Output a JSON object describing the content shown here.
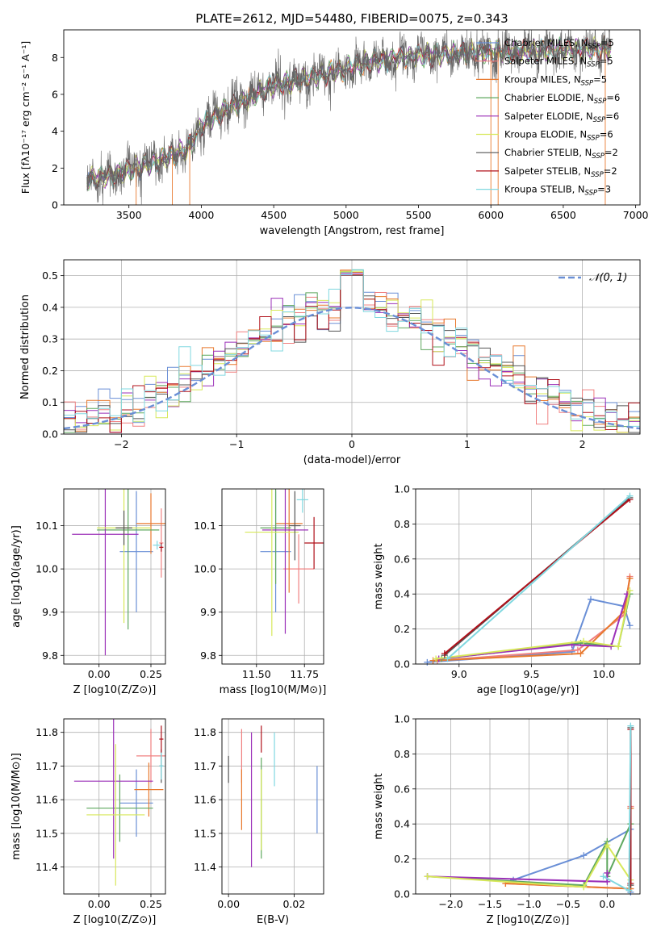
{
  "title": "PLATE=2612, MJD=54480, FIBERID=0075, z=0.343",
  "legend": [
    {
      "name": "Chabrier MILES, N_SSP=5",
      "base": "Chabrier MILES, N",
      "sub": "SSP",
      "tail": "=5",
      "color": "#6a8fd6"
    },
    {
      "name": "Salpeter MILES, N_SSP=5",
      "base": "Salpeter MILES, N",
      "sub": "SSP",
      "tail": "=5",
      "color": "#f08080"
    },
    {
      "name": "Kroupa MILES, N_SSP=5",
      "base": "Kroupa MILES, N",
      "sub": "SSP",
      "tail": "=5",
      "color": "#e8792e"
    },
    {
      "name": "Chabrier ELODIE, N_SSP=6",
      "base": "Chabrier ELODIE, N",
      "sub": "SSP",
      "tail": "=6",
      "color": "#5fa85f"
    },
    {
      "name": "Salpeter ELODIE, N_SSP=6",
      "base": "Salpeter ELODIE, N",
      "sub": "SSP",
      "tail": "=6",
      "color": "#9b30b8"
    },
    {
      "name": "Kroupa ELODIE, N_SSP=6",
      "base": "Kroupa ELODIE, N",
      "sub": "SSP",
      "tail": "=6",
      "color": "#d7e85a"
    },
    {
      "name": "Chabrier STELIB, N_SSP=2",
      "base": "Chabrier STELIB, N",
      "sub": "SSP",
      "tail": "=2",
      "color": "#555555"
    },
    {
      "name": "Salpeter STELIB, N_SSP=2",
      "base": "Salpeter STELIB, N",
      "sub": "SSP",
      "tail": "=2",
      "color": "#b0101a"
    },
    {
      "name": "Kroupa STELIB, N_SSP=3",
      "base": "Kroupa STELIB, N",
      "sub": "SSP",
      "tail": "=3",
      "color": "#80d8e0"
    }
  ],
  "chart_data": [
    {
      "id": "spectrum",
      "type": "line",
      "xlabel": "wavelength [Angstrom, rest frame]",
      "ylabel": "Flux [f_λ 10^-17 erg cm^-2 s^-1 A^-1]",
      "xlim": [
        3050,
        7030
      ],
      "ylim": [
        0,
        9.5
      ],
      "xticks": [
        3500,
        4000,
        4500,
        5000,
        5500,
        6000,
        6500,
        7000
      ],
      "yticks": [
        0,
        2,
        4,
        6,
        8
      ],
      "data_range": [
        3210,
        6830
      ],
      "continuum": [
        [
          3210,
          1.4
        ],
        [
          3400,
          1.6
        ],
        [
          3500,
          1.9
        ],
        [
          3700,
          2.4
        ],
        [
          3900,
          3.0
        ],
        [
          4000,
          4.3
        ],
        [
          4200,
          5.3
        ],
        [
          4500,
          6.5
        ],
        [
          4800,
          7.0
        ],
        [
          5000,
          7.4
        ],
        [
          5200,
          7.8
        ],
        [
          5500,
          8.1
        ],
        [
          6000,
          8.3
        ],
        [
          6500,
          8.4
        ],
        [
          6830,
          8.5
        ]
      ]
    },
    {
      "id": "residuals",
      "type": "histogram",
      "xlabel": "(data-model)/error",
      "ylabel": "Normed distribution",
      "xlim": [
        -2.5,
        2.5
      ],
      "ylim": [
        0,
        0.55
      ],
      "xticks": [
        -2,
        -1,
        0,
        1,
        2
      ],
      "yticks": [
        0.0,
        0.1,
        0.2,
        0.3,
        0.4,
        0.5
      ],
      "bin_width": 0.1,
      "gaussian_label": "N(0,1)"
    },
    {
      "id": "age_vs_Z",
      "type": "errorbar",
      "xlabel": "Z [log10(Z/Z⊙)]",
      "ylabel": "age [log10(age/yr)]",
      "xlim": [
        -0.17,
        0.32
      ],
      "ylim": [
        9.78,
        10.185
      ],
      "xticks": [
        0.0,
        0.25
      ],
      "xtick_labels": [
        "0.00",
        "0.25"
      ],
      "yticks": [
        9.8,
        9.9,
        10.0,
        10.1
      ],
      "ytick_labels": [
        "9.8",
        "9.9",
        "10.0",
        "10.1"
      ],
      "points": [
        {
          "x": 0.18,
          "xerr": 0.08,
          "y": 10.04,
          "yerr": 0.14,
          "c": 0
        },
        {
          "x": 0.3,
          "xerr": 0.01,
          "y": 10.06,
          "yerr": 0.08,
          "c": 1
        },
        {
          "x": 0.25,
          "xerr": 0.07,
          "y": 10.105,
          "yerr": 0.07,
          "c": 2
        },
        {
          "x": 0.14,
          "xerr": 0.15,
          "y": 10.09,
          "yerr": 0.23,
          "c": 3
        },
        {
          "x": 0.03,
          "xerr": 0.16,
          "y": 10.08,
          "yerr": 0.28,
          "c": 4
        },
        {
          "x": 0.12,
          "xerr": 0.13,
          "y": 10.095,
          "yerr": 0.22,
          "c": 5
        },
        {
          "x": 0.12,
          "xerr": 0.04,
          "y": 10.095,
          "yerr": 0.04,
          "c": 6
        },
        {
          "x": 0.3,
          "xerr": 0.01,
          "y": 10.05,
          "yerr": 0.01,
          "c": 7
        },
        {
          "x": 0.28,
          "xerr": 0.02,
          "y": 10.055,
          "yerr": 0.01,
          "c": 8
        }
      ]
    },
    {
      "id": "age_vs_mass",
      "type": "errorbar",
      "xlabel": "mass [log10(M/M⊙)]",
      "ylabel": "",
      "xlim": [
        11.32,
        11.85
      ],
      "ylim": [
        9.78,
        10.185
      ],
      "xticks": [
        11.5,
        11.75
      ],
      "xtick_labels": [
        "11.50",
        "11.75"
      ],
      "yticks": [
        9.8,
        9.9,
        10.0,
        10.1
      ],
      "ytick_labels": [
        "9.8",
        "9.9",
        "10.0",
        "10.1"
      ],
      "points": [
        {
          "x": 11.6,
          "xerr": 0.08,
          "y": 10.04,
          "yerr": 0.14,
          "c": 0
        },
        {
          "x": 11.72,
          "xerr": 0.08,
          "y": 10.0,
          "yerr": 0.08,
          "c": 1
        },
        {
          "x": 11.67,
          "xerr": 0.07,
          "y": 10.105,
          "yerr": 0.16,
          "c": 2
        },
        {
          "x": 11.6,
          "xerr": 0.08,
          "y": 10.095,
          "yerr": 0.13,
          "c": 3
        },
        {
          "x": 11.65,
          "xerr": 0.12,
          "y": 10.09,
          "yerr": 0.24,
          "c": 4
        },
        {
          "x": 11.58,
          "xerr": 0.14,
          "y": 10.085,
          "yerr": 0.24,
          "c": 5
        },
        {
          "x": 11.7,
          "xerr": 0.03,
          "y": 10.1,
          "yerr": 0.08,
          "c": 6
        },
        {
          "x": 11.8,
          "xerr": 0.05,
          "y": 10.06,
          "yerr": 0.06,
          "c": 7
        },
        {
          "x": 11.74,
          "xerr": 0.03,
          "y": 10.16,
          "yerr": 0.03,
          "c": 8
        }
      ]
    },
    {
      "id": "weight_vs_age",
      "type": "line",
      "xlabel": "age [log10(age/yr)]",
      "ylabel": "mass weight",
      "xlim": [
        8.7,
        10.25
      ],
      "ylim": [
        0,
        1.0
      ],
      "xticks": [
        9.0,
        9.5,
        10.0
      ],
      "xtick_labels": [
        "9.0",
        "9.5",
        "10.0"
      ],
      "yticks": [
        0.0,
        0.2,
        0.4,
        0.6,
        0.8,
        1.0
      ],
      "ytick_labels": [
        "0.0",
        "0.2",
        "0.4",
        "0.6",
        "0.8",
        "1.0"
      ],
      "series": [
        {
          "c": 0,
          "x": [
            8.78,
            9.78,
            9.91,
            10.14,
            10.18
          ],
          "y": [
            0.01,
            0.07,
            0.37,
            0.33,
            0.22
          ]
        },
        {
          "c": 1,
          "x": [
            8.85,
            9.82,
            10.14,
            10.18
          ],
          "y": [
            0.02,
            0.08,
            0.28,
            0.5
          ]
        },
        {
          "c": 2,
          "x": [
            8.82,
            9.84,
            10.14,
            10.18
          ],
          "y": [
            0.02,
            0.06,
            0.3,
            0.49
          ]
        },
        {
          "c": 3,
          "x": [
            8.88,
            9.84,
            10.1,
            10.18
          ],
          "y": [
            0.03,
            0.12,
            0.1,
            0.4
          ]
        },
        {
          "c": 4,
          "x": [
            8.86,
            9.78,
            10.05,
            10.16
          ],
          "y": [
            0.03,
            0.11,
            0.1,
            0.4
          ]
        },
        {
          "c": 5,
          "x": [
            8.84,
            9.86,
            10.1,
            10.18
          ],
          "y": [
            0.03,
            0.13,
            0.1,
            0.42
          ]
        },
        {
          "c": 6,
          "x": [
            8.9,
            10.18
          ],
          "y": [
            0.05,
            0.95
          ]
        },
        {
          "c": 7,
          "x": [
            8.9,
            10.18
          ],
          "y": [
            0.06,
            0.94
          ]
        },
        {
          "c": 8,
          "x": [
            8.92,
            10.18
          ],
          "y": [
            0.03,
            0.96
          ]
        }
      ]
    },
    {
      "id": "mass_vs_Z",
      "type": "errorbar",
      "xlabel": "Z [log10(Z/Z⊙)]",
      "ylabel": "mass [log10(M/M⊙)]",
      "xlim": [
        -0.17,
        0.32
      ],
      "ylim": [
        11.32,
        11.84
      ],
      "xticks": [
        0.0,
        0.25
      ],
      "xtick_labels": [
        "0.00",
        "0.25"
      ],
      "yticks": [
        11.4,
        11.5,
        11.6,
        11.7,
        11.8
      ],
      "ytick_labels": [
        "11.4",
        "11.5",
        "11.6",
        "11.7",
        "11.8"
      ],
      "points": [
        {
          "x": 0.18,
          "xerr": 0.08,
          "y": 11.59,
          "yerr": 0.1,
          "c": 0
        },
        {
          "x": 0.25,
          "xerr": 0.07,
          "y": 11.73,
          "yerr": 0.08,
          "c": 1
        },
        {
          "x": 0.24,
          "xerr": 0.07,
          "y": 11.63,
          "yerr": 0.08,
          "c": 2
        },
        {
          "x": 0.1,
          "xerr": 0.16,
          "y": 11.575,
          "yerr": 0.1,
          "c": 3
        },
        {
          "x": 0.07,
          "xerr": 0.19,
          "y": 11.655,
          "yerr": 0.23,
          "c": 4
        },
        {
          "x": 0.08,
          "xerr": 0.14,
          "y": 11.555,
          "yerr": 0.21,
          "c": 5
        },
        {
          "x": 0.3,
          "xerr": 0.01,
          "y": 11.7,
          "yerr": 0.05,
          "c": 6
        },
        {
          "x": 0.3,
          "xerr": 0.01,
          "y": 11.78,
          "yerr": 0.04,
          "c": 7
        },
        {
          "x": 0.3,
          "xerr": 0.01,
          "y": 11.7,
          "yerr": 0.04,
          "c": 8
        }
      ]
    },
    {
      "id": "mass_vs_ebv",
      "type": "errorbar",
      "xlabel": "E(B-V)",
      "ylabel": "",
      "xlim": [
        -0.002,
        0.029
      ],
      "ylim": [
        11.32,
        11.84
      ],
      "xticks": [
        0.0,
        0.02
      ],
      "xtick_labels": [
        "0.00",
        "0.02"
      ],
      "yticks": [
        11.4,
        11.5,
        11.6,
        11.7,
        11.8
      ],
      "ytick_labels": [
        "11.4",
        "11.5",
        "11.6",
        "11.7",
        "11.8"
      ],
      "points": [
        {
          "x": 0.027,
          "xerr": 0,
          "y": 11.6,
          "yerr": 0.1,
          "c": 0
        },
        {
          "x": 0.004,
          "xerr": 0,
          "y": 11.73,
          "yerr": 0.08,
          "c": 1
        },
        {
          "x": 0.004,
          "xerr": 0,
          "y": 11.6,
          "yerr": 0.09,
          "c": 2
        },
        {
          "x": 0.01,
          "xerr": 0,
          "y": 11.575,
          "yerr": 0.15,
          "c": 3
        },
        {
          "x": 0.007,
          "xerr": 0,
          "y": 11.6,
          "yerr": 0.2,
          "c": 4
        },
        {
          "x": 0.01,
          "xerr": 0,
          "y": 11.57,
          "yerr": 0.12,
          "c": 5
        },
        {
          "x": 0.0,
          "xerr": 0,
          "y": 11.69,
          "yerr": 0.04,
          "c": 6
        },
        {
          "x": 0.01,
          "xerr": 0,
          "y": 11.78,
          "yerr": 0.04,
          "c": 7
        },
        {
          "x": 0.014,
          "xerr": 0,
          "y": 11.72,
          "yerr": 0.08,
          "c": 8
        }
      ]
    },
    {
      "id": "weight_vs_Z",
      "type": "line",
      "xlabel": "Z [log10(Z/Z⊙)]",
      "ylabel": "mass weight",
      "xlim": [
        -2.45,
        0.42
      ],
      "ylim": [
        0,
        1.0
      ],
      "xticks": [
        -2.0,
        -1.5,
        -1.0,
        -0.5,
        0.0
      ],
      "xtick_labels": [
        "−2.0",
        "−1.5",
        "−1.0",
        "−0.5",
        "0.0"
      ],
      "yticks": [
        0.0,
        0.2,
        0.4,
        0.6,
        0.8,
        1.0
      ],
      "ytick_labels": [
        "0.0",
        "0.2",
        "0.4",
        "0.6",
        "0.8",
        "1.0"
      ],
      "series": [
        {
          "c": 0,
          "x": [
            -1.2,
            -0.3,
            0.3,
            0.3
          ],
          "y": [
            0.08,
            0.22,
            0.37,
            0.01
          ]
        },
        {
          "c": 1,
          "x": [
            -1.3,
            0.3,
            0.3
          ],
          "y": [
            0.06,
            0.03,
            0.5
          ]
        },
        {
          "c": 2,
          "x": [
            -1.3,
            0.3,
            0.3
          ],
          "y": [
            0.06,
            0.03,
            0.49
          ]
        },
        {
          "c": 3,
          "x": [
            -2.3,
            -0.3,
            0.0,
            0.0,
            0.3
          ],
          "y": [
            0.1,
            0.05,
            0.3,
            0.1,
            0.4
          ]
        },
        {
          "c": 4,
          "x": [
            -2.3,
            0.0,
            0.0
          ],
          "y": [
            0.1,
            0.07,
            0.12
          ]
        },
        {
          "c": 5,
          "x": [
            -2.3,
            -0.3,
            0.0,
            0.3
          ],
          "y": [
            0.1,
            0.04,
            0.28,
            0.08
          ]
        },
        {
          "c": 6,
          "x": [
            0.3,
            0.3
          ],
          "y": [
            0.05,
            0.95
          ]
        },
        {
          "c": 7,
          "x": [
            0.3,
            0.3
          ],
          "y": [
            0.06,
            0.94
          ]
        },
        {
          "c": 8,
          "x": [
            -0.05,
            0.28,
            0.3
          ],
          "y": [
            0.1,
            0.02,
            0.96
          ]
        }
      ]
    }
  ]
}
